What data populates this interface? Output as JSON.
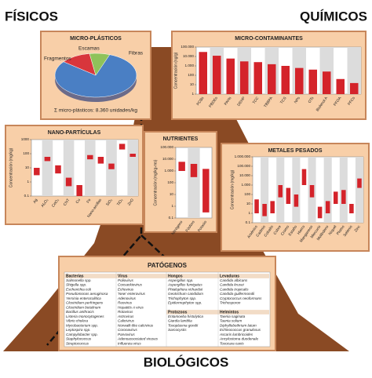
{
  "labels": {
    "fisicos": "FÍSICOS",
    "quimicos": "QUÍMICOS",
    "biologicos": "BIOLÓGICOS"
  },
  "chart_data": [
    {
      "type": "pie",
      "title": "MICRO-PLÁSTICOS",
      "categories": [
        "Fibras",
        "Fragmentos",
        "Escamas"
      ],
      "values": [
        80,
        12,
        8
      ],
      "colors": [
        "#4a7fc4",
        "#d8363c",
        "#8fc25a"
      ],
      "note": "Σ micro-plásticos: 8.360 unidades/kg"
    },
    {
      "type": "bar",
      "title": "MICRO-CONTAMINANTES",
      "y_label": "Concentración (ng/g)",
      "log_scale": true,
      "color": "#d4232a",
      "ylim": [
        1,
        100000
      ],
      "yticks": [
        1,
        10,
        100,
        {
          "value": 1000,
          "label": "1.000"
        },
        {
          "value": 10000,
          "label": "10.000"
        },
        {
          "value": 100000,
          "label": "100.000"
        }
      ],
      "categories": [
        "PCBs",
        "PBDEs",
        "PAHs",
        "DEHP",
        "TCC",
        "TBBPA",
        "TCS",
        "NPs",
        "OTs",
        "Bisfenol A",
        "PFOA",
        "PFCs"
      ],
      "values": [
        30000,
        12000,
        6000,
        3000,
        2500,
        1500,
        1000,
        600,
        400,
        250,
        40,
        15
      ]
    },
    {
      "type": "range",
      "title": "NANO-PARTÍCULAS",
      "y_label": "Concentración (mg/kg)",
      "log_scale": true,
      "color": "#d4232a",
      "ylim": [
        0.1,
        1000
      ],
      "yticks": [
        0.1,
        1,
        10,
        100,
        1000
      ],
      "categories": [
        "Ag",
        "Al₂O₃",
        "CeO₂",
        "CNT",
        "Cu",
        "Fe",
        "Nano-arcillas",
        "SiO₂",
        "TiO₂",
        "ZnO"
      ],
      "low": [
        3,
        30,
        4,
        0.5,
        0.1,
        40,
        20,
        8,
        200,
        60
      ],
      "high": [
        10,
        60,
        15,
        2,
        0.6,
        80,
        60,
        20,
        500,
        100
      ]
    },
    {
      "type": "range",
      "title": "NUTRIENTES",
      "y_label": "Concentración (mg/kg-ms)",
      "log_scale": true,
      "color": "#d4232a",
      "ylim": [
        0.1,
        100000
      ],
      "yticks": [
        0.1,
        1,
        10,
        100,
        {
          "value": 1000,
          "label": "1.000"
        },
        {
          "value": 10000,
          "label": "10.000"
        },
        {
          "value": 100000,
          "label": "100.000"
        }
      ],
      "categories": [
        "Nitrógeno",
        "Fósforo",
        "Potasio"
      ],
      "low": [
        1000,
        300,
        0.3
      ],
      "high": [
        6000,
        4000,
        1500
      ]
    },
    {
      "type": "range",
      "title": "METALES PESADOS",
      "y_label": "Concentración (mg/kg)",
      "log_scale": true,
      "color": "#d4232a",
      "ylim": [
        0.1,
        1000000
      ],
      "yticks": [
        0.1,
        1,
        10,
        100,
        {
          "value": 1000,
          "label": "1.000"
        },
        {
          "value": 10000,
          "label": "10.000"
        },
        {
          "value": 100000,
          "label": "100.000"
        },
        {
          "value": 1000000,
          "label": "1.000.000"
        }
      ],
      "categories": [
        "Arsénico",
        "Cadmio",
        "Cobalto",
        "Cobre",
        "Cromo",
        "Estaño",
        "Hierro",
        "Manganeso",
        "Mercurio",
        "Molibdeno",
        "Níquel",
        "Plomo",
        "Selenio",
        "Zinc"
      ],
      "low": [
        1,
        0.5,
        1,
        50,
        10,
        5,
        1000,
        50,
        0.3,
        1,
        10,
        10,
        1,
        500
      ],
      "high": [
        30,
        10,
        20,
        1000,
        500,
        100,
        50000,
        1000,
        5,
        20,
        200,
        300,
        10,
        5000
      ]
    }
  ],
  "table": {
    "title": "PATÓGENOS",
    "columns": [
      {
        "header": "Bacterias",
        "items": [
          "Salmonella spp.",
          "Shigella spp.",
          "Escherichia coli",
          "Pseudomonas aeruginosa",
          "Yersinia enterocolitica",
          "Clostridium perfringens",
          "Clostridium botulinum",
          "Bacillus anthracis",
          "Listeria monocytogenes",
          "Vibrio cholera",
          "Mycobacterium spp.",
          "Leptospira spp.",
          "Campylobacter spp.",
          "Staphylococcus",
          "Streptococcus"
        ]
      },
      {
        "header": "Virus",
        "items": [
          "Poliovirus",
          "Coxsackievirus",
          "Echovirus",
          "'New' enterovirus",
          "Adenovirus",
          "Reovirus",
          "Hepatitis A virus",
          "Rotavirus",
          "Astrovirus",
          "Calicivirus",
          "Norwalk-like calcivirus",
          "Coronavirus",
          "Parvovirus",
          "Adenoassociated viruses",
          "Influenza virus"
        ]
      },
      {
        "header": "Hongos",
        "items": [
          "Aspergillus spp.",
          "Aspergillus fumigatus",
          "Phialophora richardsii",
          "Geotrichum candidum",
          "Trichophyton spp.",
          "Epidermophyton spp."
        ]
      },
      {
        "header": "Levaduras",
        "items": [
          "Candida albicans",
          "Candida krusei",
          "Candida tropicalis",
          "Candida guillermondii",
          "Cryptococcus neoformans",
          "Trichosporon"
        ]
      },
      {
        "header": "Protozoos",
        "items": [
          "Entamoeba histolytica",
          "Giardia lamblia",
          "Toxoplasma gondii",
          "Sarcocystis"
        ]
      },
      {
        "header": "Helmintos",
        "items": [
          "Taenia saginata",
          "Taenia solium",
          "Diphyllobothrium latum",
          "Echinococcus granulosus",
          "Ascaris lumbricoides",
          "Ancylostoma duodenale",
          "Toxocara canis"
        ]
      }
    ]
  }
}
